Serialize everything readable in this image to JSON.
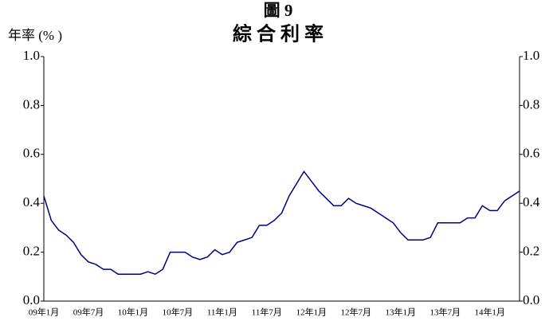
{
  "chart_data": {
    "type": "line",
    "title": "圖 9",
    "subtitle": "綜 合 利 率",
    "y_label": "年率 (% )",
    "categories": [
      "09年1月",
      null,
      null,
      null,
      null,
      null,
      "09年7月",
      null,
      null,
      null,
      null,
      null,
      "10年1月",
      null,
      null,
      null,
      null,
      null,
      "10年7月",
      null,
      null,
      null,
      null,
      null,
      "11年1月",
      null,
      null,
      null,
      null,
      null,
      "11年7月",
      null,
      null,
      null,
      null,
      null,
      "12年1月",
      null,
      null,
      null,
      null,
      null,
      "12年7月",
      null,
      null,
      null,
      null,
      null,
      "13年1月",
      null,
      null,
      null,
      null,
      null,
      "13年7月",
      null,
      null,
      null,
      null,
      null,
      "14年1月",
      null,
      null,
      null,
      null
    ],
    "series": [
      {
        "color": "#000080",
        "values": [
          0.43,
          0.33,
          0.29,
          0.27,
          0.24,
          0.19,
          0.16,
          0.15,
          0.13,
          0.13,
          0.11,
          0.11,
          0.11,
          0.11,
          0.12,
          0.11,
          0.13,
          0.2,
          0.2,
          0.2,
          0.18,
          0.17,
          0.18,
          0.21,
          0.19,
          0.2,
          0.24,
          0.25,
          0.26,
          0.31,
          0.31,
          0.33,
          0.36,
          0.43,
          0.48,
          0.53,
          0.49,
          0.45,
          0.42,
          0.39,
          0.39,
          0.42,
          0.4,
          0.39,
          0.38,
          0.36,
          0.34,
          0.32,
          0.28,
          0.25,
          0.25,
          0.25,
          0.26,
          0.32,
          0.32,
          0.32,
          0.32,
          0.34,
          0.34,
          0.39,
          0.37,
          0.37,
          0.41,
          0.43,
          0.45
        ]
      }
    ],
    "ylim": [
      0,
      1.0
    ],
    "yticks": [
      {
        "value": 0,
        "label": "0.0"
      },
      0.2,
      0.4,
      0.6,
      0.8,
      {
        "value": 1.0,
        "label": "1.0"
      }
    ],
    "y2lim": [
      0,
      1.0
    ],
    "y2ticks": [
      {
        "value": 0,
        "label": "0.0"
      },
      0.2,
      0.4,
      0.6,
      0.8,
      {
        "value": 1.0,
        "label": "1.0"
      }
    ]
  }
}
